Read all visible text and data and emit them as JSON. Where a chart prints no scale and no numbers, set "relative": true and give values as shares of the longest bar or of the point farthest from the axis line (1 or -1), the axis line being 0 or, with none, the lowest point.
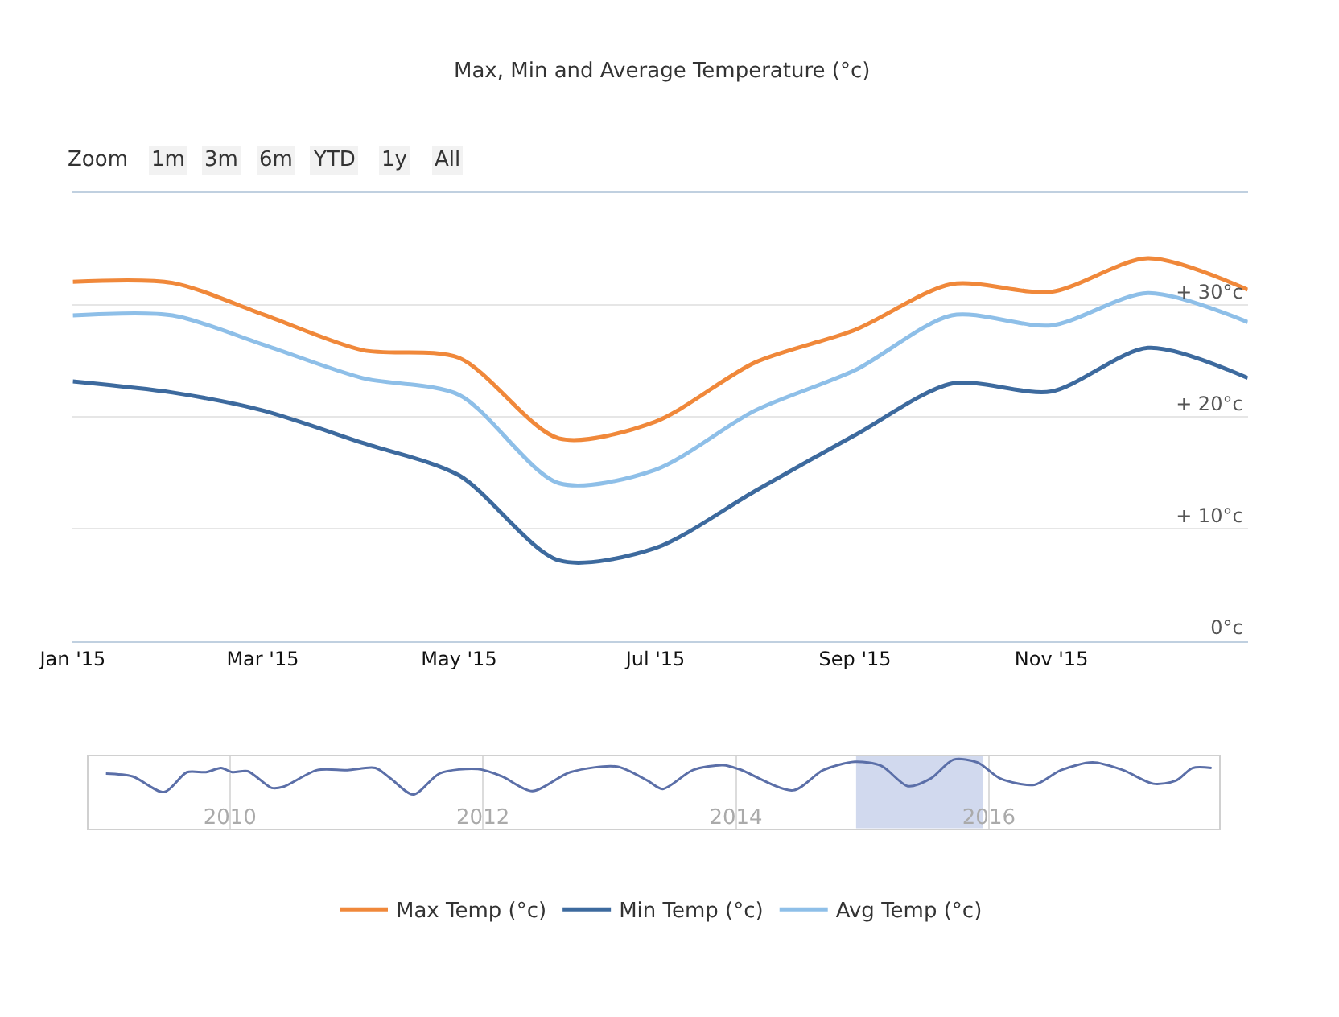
{
  "chart_data": [
    {
      "type": "line",
      "title": "Max, Min and Average Temperature (°c)",
      "annotations": [
        "Zoom",
        "1m",
        "3m",
        "6m",
        "YTD",
        "1y",
        "All"
      ],
      "x": [
        "2015-01",
        "2015-02",
        "2015-03",
        "2015-04",
        "2015-05",
        "2015-06",
        "2015-07",
        "2015-08",
        "2015-09",
        "2015-10",
        "2015-11",
        "2015-12",
        "2016-01"
      ],
      "series": [
        {
          "name": "Max Temp (°c)",
          "color": "#f0883a",
          "values": [
            32.1,
            32.0,
            29.2,
            26.0,
            25.3,
            18.1,
            19.6,
            24.9,
            27.8,
            31.9,
            31.2,
            34.2,
            31.4
          ]
        },
        {
          "name": "Min Temp (°c)",
          "color": "#3d6a9e",
          "values": [
            23.2,
            22.2,
            20.6,
            17.7,
            14.8,
            7.2,
            8.3,
            13.4,
            18.4,
            23.0,
            22.3,
            26.2,
            23.5
          ]
        },
        {
          "name": "Avg Temp (°c)",
          "color": "#8ebfe8",
          "values": [
            29.1,
            29.1,
            26.5,
            23.5,
            22.0,
            14.1,
            15.3,
            20.6,
            24.2,
            29.1,
            28.2,
            31.1,
            28.5
          ]
        }
      ],
      "xlim": [
        "2015-01-01",
        "2016-01-01"
      ],
      "xticks": [
        {
          "value": "2015-01",
          "label": "Jan '15"
        },
        {
          "value": "2015-03",
          "label": "Mar '15"
        },
        {
          "value": "2015-05",
          "label": "May '15"
        },
        {
          "value": "2015-07",
          "label": "Jul '15"
        },
        {
          "value": "2015-09",
          "label": "Sep '15"
        },
        {
          "value": "2015-11",
          "label": "Nov '15"
        }
      ],
      "ylim": [
        0,
        40
      ],
      "yticks": [
        {
          "value": 0,
          "label": "0°c"
        },
        {
          "value": 10,
          "label": "+ 10°c"
        },
        {
          "value": 20,
          "label": "+ 20°c"
        },
        {
          "value": 30,
          "label": "+ 30°c"
        },
        {
          "value": 40,
          "label": null
        }
      ],
      "grid": "y",
      "legend": "bottom",
      "marker": "none",
      "line_style": "solid"
    },
    {
      "type": "line",
      "relative": true,
      "color": "#5b6fa8",
      "x": [
        2009.02,
        2009.23,
        2009.48,
        2009.66,
        2009.81,
        2009.93,
        2010.02,
        2010.14,
        2010.33,
        2010.42,
        2010.69,
        2010.93,
        2011.15,
        2011.27,
        2011.45,
        2011.66,
        2011.96,
        2012.15,
        2012.39,
        2012.69,
        2013.06,
        2013.3,
        2013.42,
        2013.66,
        2013.9,
        2014.03,
        2014.45,
        2014.69,
        2014.94,
        2015.15,
        2015.36,
        2015.54,
        2015.72,
        2015.91,
        2016.09,
        2016.36,
        2016.57,
        2016.82,
        2017.06,
        2017.3,
        2017.48,
        2017.61,
        2017.76
      ],
      "values": [
        0.6,
        0.52,
        0.07,
        0.64,
        0.64,
        0.76,
        0.64,
        0.67,
        0.19,
        0.22,
        0.7,
        0.7,
        0.76,
        0.46,
        0,
        0.61,
        0.73,
        0.52,
        0.1,
        0.64,
        0.8,
        0.4,
        0.16,
        0.7,
        0.84,
        0.72,
        0.12,
        0.7,
        0.94,
        0.82,
        0.24,
        0.46,
        1,
        0.92,
        0.46,
        0.28,
        0.7,
        0.92,
        0.7,
        0.31,
        0.4,
        0.76,
        0.76
      ],
      "xlim": [
        2008.88,
        2017.82
      ],
      "xticks": [
        2010,
        2012,
        2014,
        2016
      ],
      "bands": [
        {
          "axis": "x",
          "from": 2014.95,
          "to": 2015.95,
          "color": "#c6d0ea"
        }
      ],
      "grid": "x",
      "tick_labels": "x"
    }
  ]
}
